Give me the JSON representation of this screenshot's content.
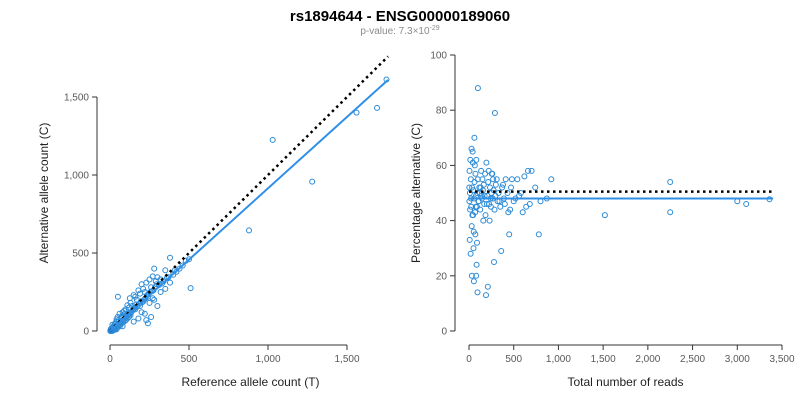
{
  "figure": {
    "title": "rs1894644 - ENSG00000189060",
    "subtitle_prefix": "p-value: 7.3×10",
    "subtitle_exponent": "-29"
  },
  "colors": {
    "points": "#2b8ad6",
    "fit_line": "#2f8fe6",
    "reference_line": "#000000"
  },
  "chart_data": [
    {
      "type": "scatter",
      "xlabel": "Reference allele count (T)",
      "ylabel": "Alternative allele count (C)",
      "xlim": [
        -20,
        1780
      ],
      "ylim": [
        -30,
        1620
      ],
      "xticks": [
        0,
        500,
        1000,
        1500
      ],
      "xtick_labels": [
        "0",
        "500",
        "1,000",
        "1,500"
      ],
      "yticks": [
        0,
        500,
        1000,
        1500
      ],
      "ytick_labels": [
        "0",
        "500",
        "1,000",
        "1,500"
      ],
      "grid": false,
      "reference_line": {
        "style": "dotted",
        "x": [
          0,
          1760
        ],
        "y": [
          0,
          1760
        ]
      },
      "fit_line": {
        "x": [
          0,
          1760
        ],
        "y": [
          0,
          1610
        ]
      },
      "points": [
        [
          1750,
          1612
        ],
        [
          1690,
          1430
        ],
        [
          1560,
          1400
        ],
        [
          1030,
          1225
        ],
        [
          1280,
          958
        ],
        [
          880,
          645
        ],
        [
          510,
          275
        ],
        [
          480,
          450
        ],
        [
          460,
          420
        ],
        [
          410,
          390
        ],
        [
          380,
          470
        ],
        [
          370,
          345
        ],
        [
          350,
          390
        ],
        [
          330,
          305
        ],
        [
          320,
          330
        ],
        [
          300,
          345
        ],
        [
          290,
          320
        ],
        [
          280,
          400
        ],
        [
          270,
          350
        ],
        [
          260,
          280
        ],
        [
          250,
          330
        ],
        [
          240,
          220
        ],
        [
          230,
          310
        ],
        [
          220,
          250
        ],
        [
          210,
          270
        ],
        [
          200,
          300
        ],
        [
          190,
          240
        ],
        [
          180,
          260
        ],
        [
          170,
          200
        ],
        [
          160,
          220
        ],
        [
          150,
          230
        ],
        [
          140,
          160
        ],
        [
          130,
          180
        ],
        [
          125,
          210
        ],
        [
          120,
          150
        ],
        [
          110,
          165
        ],
        [
          100,
          140
        ],
        [
          95,
          110
        ],
        [
          90,
          130
        ],
        [
          85,
          100
        ],
        [
          80,
          120
        ],
        [
          75,
          95
        ],
        [
          70,
          85
        ],
        [
          65,
          60
        ],
        [
          60,
          110
        ],
        [
          55,
          70
        ],
        [
          50,
          220
        ],
        [
          48,
          90
        ],
        [
          45,
          40
        ],
        [
          42,
          75
        ],
        [
          40,
          60
        ],
        [
          38,
          30
        ],
        [
          35,
          50
        ],
        [
          32,
          20
        ],
        [
          30,
          45
        ],
        [
          28,
          10
        ],
        [
          25,
          35
        ],
        [
          22,
          5
        ],
        [
          20,
          25
        ],
        [
          18,
          15
        ],
        [
          15,
          40
        ],
        [
          12,
          8
        ],
        [
          10,
          18
        ],
        [
          8,
          2
        ],
        [
          5,
          12
        ],
        [
          3,
          5
        ],
        [
          2,
          0
        ],
        [
          6,
          0
        ],
        [
          9,
          3
        ],
        [
          14,
          0
        ],
        [
          17,
          6
        ],
        [
          24,
          12
        ],
        [
          27,
          20
        ],
        [
          33,
          9
        ],
        [
          36,
          28
        ],
        [
          44,
          18
        ],
        [
          52,
          34
        ],
        [
          58,
          45
        ],
        [
          62,
          30
        ],
        [
          68,
          52
        ],
        [
          72,
          48
        ],
        [
          78,
          66
        ],
        [
          82,
          55
        ],
        [
          88,
          75
        ],
        [
          92,
          62
        ],
        [
          98,
          85
        ],
        [
          105,
          92
        ],
        [
          112,
          100
        ],
        [
          118,
          105
        ],
        [
          128,
          112
        ],
        [
          135,
          122
        ],
        [
          142,
          130
        ],
        [
          148,
          140
        ],
        [
          155,
          150
        ],
        [
          162,
          150
        ],
        [
          168,
          170
        ],
        [
          175,
          160
        ],
        [
          185,
          175
        ],
        [
          195,
          190
        ],
        [
          205,
          185
        ],
        [
          215,
          200
        ],
        [
          225,
          210
        ],
        [
          235,
          230
        ],
        [
          245,
          240
        ],
        [
          255,
          250
        ],
        [
          265,
          255
        ],
        [
          275,
          260
        ],
        [
          285,
          280
        ],
        [
          295,
          300
        ],
        [
          310,
          295
        ],
        [
          340,
          320
        ],
        [
          360,
          340
        ],
        [
          400,
          360
        ],
        [
          420,
          380
        ],
        [
          440,
          400
        ],
        [
          500,
          460
        ],
        [
          230,
          70
        ],
        [
          240,
          50
        ],
        [
          260,
          90
        ],
        [
          200,
          120
        ],
        [
          300,
          160
        ],
        [
          180,
          80
        ],
        [
          220,
          110
        ],
        [
          150,
          60
        ],
        [
          250,
          180
        ],
        [
          280,
          200
        ],
        [
          120,
          90
        ],
        [
          100,
          70
        ],
        [
          60,
          40
        ],
        [
          80,
          30
        ],
        [
          40,
          10
        ],
        [
          110,
          80
        ],
        [
          130,
          100
        ],
        [
          160,
          140
        ],
        [
          190,
          160
        ],
        [
          210,
          190
        ],
        [
          320,
          250
        ],
        [
          270,
          210
        ],
        [
          350,
          270
        ],
        [
          380,
          310
        ]
      ]
    },
    {
      "type": "scatter",
      "xlabel": "Total number of reads",
      "ylabel": "Percentage alternative (C)",
      "xlim": [
        -60,
        3520
      ],
      "ylim": [
        -1,
        100.5
      ],
      "xticks": [
        0,
        500,
        1000,
        1500,
        2000,
        2500,
        3000,
        3500
      ],
      "xtick_labels": [
        "0",
        "500",
        "1,000",
        "1,500",
        "2,000",
        "2,500",
        "3,000",
        "3,500"
      ],
      "yticks": [
        0,
        20,
        40,
        60,
        80,
        100
      ],
      "ytick_labels": [
        "0",
        "20",
        "40",
        "60",
        "80",
        "100"
      ],
      "grid": false,
      "reference_line": {
        "style": "dotted",
        "x": [
          0,
          3400
        ],
        "y": [
          50.5,
          50.5
        ]
      },
      "fit_line": {
        "x": [
          0,
          3400
        ],
        "y": [
          48,
          48
        ]
      },
      "points": [
        [
          3360,
          47.7
        ],
        [
          3100,
          46
        ],
        [
          3000,
          47
        ],
        [
          2250,
          54
        ],
        [
          2250,
          43
        ],
        [
          1520,
          42
        ],
        [
          920,
          55
        ],
        [
          870,
          48
        ],
        [
          800,
          47
        ],
        [
          780,
          35
        ],
        [
          700,
          58
        ],
        [
          660,
          58
        ],
        [
          640,
          45
        ],
        [
          600,
          43
        ],
        [
          560,
          49
        ],
        [
          540,
          55
        ],
        [
          500,
          47
        ],
        [
          480,
          55
        ],
        [
          460,
          44
        ],
        [
          450,
          35
        ],
        [
          430,
          50
        ],
        [
          400,
          46
        ],
        [
          380,
          53
        ],
        [
          360,
          29
        ],
        [
          340,
          47
        ],
        [
          320,
          47
        ],
        [
          300,
          53
        ],
        [
          290,
          79
        ],
        [
          280,
          25
        ],
        [
          270,
          55
        ],
        [
          260,
          57
        ],
        [
          250,
          50
        ],
        [
          240,
          48
        ],
        [
          230,
          40
        ],
        [
          220,
          58
        ],
        [
          210,
          16
        ],
        [
          200,
          46
        ],
        [
          190,
          13
        ],
        [
          180,
          57
        ],
        [
          170,
          46
        ],
        [
          160,
          40
        ],
        [
          150,
          55
        ],
        [
          140,
          49
        ],
        [
          130,
          52
        ],
        [
          120,
          50
        ],
        [
          110,
          47
        ],
        [
          100,
          88
        ],
        [
          95,
          14
        ],
        [
          90,
          32
        ],
        [
          85,
          24
        ],
        [
          80,
          20
        ],
        [
          75,
          45
        ],
        [
          70,
          35
        ],
        [
          65,
          60
        ],
        [
          60,
          70
        ],
        [
          55,
          18
        ],
        [
          50,
          30
        ],
        [
          45,
          42
        ],
        [
          40,
          65
        ],
        [
          35,
          52
        ],
        [
          30,
          38
        ],
        [
          25,
          45
        ],
        [
          20,
          55
        ],
        [
          15,
          62
        ],
        [
          12,
          44
        ],
        [
          10,
          50
        ],
        [
          8,
          33
        ],
        [
          6,
          58
        ],
        [
          5,
          47
        ],
        [
          3,
          52
        ],
        [
          18,
          28
        ],
        [
          22,
          48
        ],
        [
          28,
          66
        ],
        [
          32,
          20
        ],
        [
          38,
          42
        ],
        [
          42,
          61
        ],
        [
          48,
          51
        ],
        [
          52,
          36
        ],
        [
          58,
          48
        ],
        [
          62,
          54
        ],
        [
          68,
          43
        ],
        [
          72,
          57
        ],
        [
          78,
          49
        ],
        [
          82,
          62
        ],
        [
          88,
          45
        ],
        [
          92,
          50
        ],
        [
          98,
          55
        ],
        [
          105,
          47
        ],
        [
          115,
          52
        ],
        [
          125,
          44
        ],
        [
          135,
          58
        ],
        [
          145,
          48
        ],
        [
          155,
          51
        ],
        [
          165,
          53
        ],
        [
          175,
          49
        ],
        [
          185,
          42
        ],
        [
          195,
          61
        ],
        [
          205,
          49
        ],
        [
          215,
          54
        ],
        [
          225,
          46
        ],
        [
          235,
          52
        ],
        [
          245,
          45
        ],
        [
          255,
          57
        ],
        [
          265,
          48
        ],
        [
          275,
          51
        ],
        [
          285,
          44
        ],
        [
          295,
          49
        ],
        [
          310,
          55
        ],
        [
          330,
          50
        ],
        [
          350,
          45
        ],
        [
          370,
          52
        ],
        [
          390,
          48
        ],
        [
          410,
          55
        ],
        [
          440,
          43
        ],
        [
          470,
          52
        ],
        [
          520,
          48
        ],
        [
          580,
          50
        ],
        [
          620,
          56
        ],
        [
          680,
          46
        ],
        [
          740,
          52
        ]
      ]
    }
  ]
}
